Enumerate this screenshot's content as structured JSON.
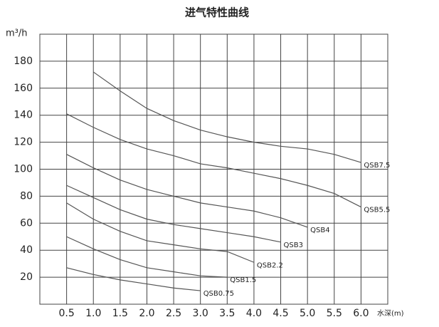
{
  "chart_data": {
    "type": "line",
    "title": "进气特性曲线",
    "y_label": "m³/h",
    "x_label": "水深(m)",
    "xlim": [
      0,
      6.5
    ],
    "ylim": [
      0,
      200
    ],
    "xticks": [
      0.5,
      {
        "value": 1,
        "label": "1.0"
      },
      1.5,
      {
        "value": 2,
        "label": "2.0"
      },
      2.5,
      {
        "value": 3,
        "label": "3.0"
      },
      3.5,
      {
        "value": 4,
        "label": "4.0"
      },
      4.5,
      {
        "value": 5,
        "label": "5.0"
      },
      5.5,
      {
        "value": 6,
        "label": "6.0"
      }
    ],
    "yticks": [
      20,
      40,
      60,
      80,
      100,
      120,
      140,
      160,
      180
    ],
    "grid": true,
    "color": "#555555",
    "series": [
      {
        "name": "QSB7.5",
        "x": [
          1,
          1.5,
          2,
          2.5,
          3,
          3.5,
          4,
          4.5,
          5,
          5.5,
          6
        ],
        "values": [
          172,
          158,
          145,
          136,
          129,
          124,
          120,
          117,
          115,
          111,
          105
        ]
      },
      {
        "name": "QSB5.5",
        "x": [
          0.5,
          1,
          1.5,
          2,
          2.5,
          3,
          3.5,
          4,
          4.5,
          5,
          5.5,
          6
        ],
        "values": [
          141,
          131,
          122,
          115,
          110,
          104,
          101,
          97,
          93,
          88,
          82,
          72
        ]
      },
      {
        "name": "QSB4",
        "x": [
          0.5,
          1,
          1.5,
          2,
          2.5,
          3,
          3.5,
          4,
          4.5,
          5
        ],
        "values": [
          111,
          101,
          92,
          85,
          80,
          75,
          72,
          69,
          64,
          57
        ]
      },
      {
        "name": "QSB3",
        "x": [
          0.5,
          1,
          1.5,
          2,
          2.5,
          3,
          3.5,
          4,
          4.5
        ],
        "values": [
          88,
          79,
          70,
          63,
          59,
          56,
          53,
          50,
          46
        ]
      },
      {
        "name": "QSB2.2",
        "x": [
          0.5,
          1,
          1.5,
          2,
          2.5,
          3,
          3.5,
          4
        ],
        "values": [
          75,
          63,
          54,
          47,
          44,
          41,
          39,
          31
        ]
      },
      {
        "name": "QSB1.5",
        "x": [
          0.5,
          1,
          1.5,
          2,
          2.5,
          3,
          3.5
        ],
        "values": [
          50,
          41,
          33,
          27,
          24,
          21,
          20
        ]
      },
      {
        "name": "QSB0.75",
        "x": [
          0.5,
          1,
          1.5,
          2,
          2.5,
          3
        ],
        "values": [
          27,
          22,
          18,
          15,
          12,
          10
        ]
      }
    ]
  }
}
